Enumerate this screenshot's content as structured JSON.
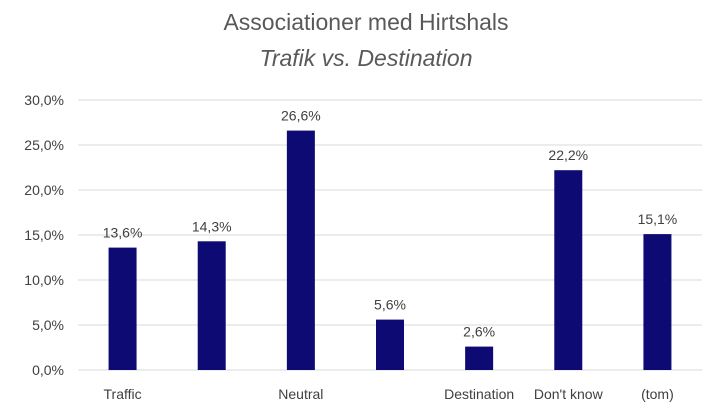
{
  "chart_data": {
    "type": "bar",
    "title": "Associationer med Hirtshals",
    "subtitle": "Trafik vs. Destination",
    "categories": [
      "Traffic",
      "",
      "Neutral",
      "",
      "Destination",
      "Don't know",
      "(tom)"
    ],
    "values": [
      13.6,
      14.3,
      26.6,
      5.6,
      2.6,
      22.2,
      15.1
    ],
    "data_labels": [
      "13,6%",
      "14,3%",
      "26,6%",
      "5,6%",
      "2,6%",
      "22,2%",
      "15,1%"
    ],
    "y_ticks": [
      0,
      5,
      10,
      15,
      20,
      25,
      30
    ],
    "y_tick_labels": [
      "0,0%",
      "5,0%",
      "10,0%",
      "15,0%",
      "20,0%",
      "25,0%",
      "30,0%"
    ],
    "ylim": [
      0,
      30
    ],
    "grid": true,
    "legend": "none",
    "bar_color": "#0d0a73",
    "grid_color": "#d9d9d9"
  }
}
